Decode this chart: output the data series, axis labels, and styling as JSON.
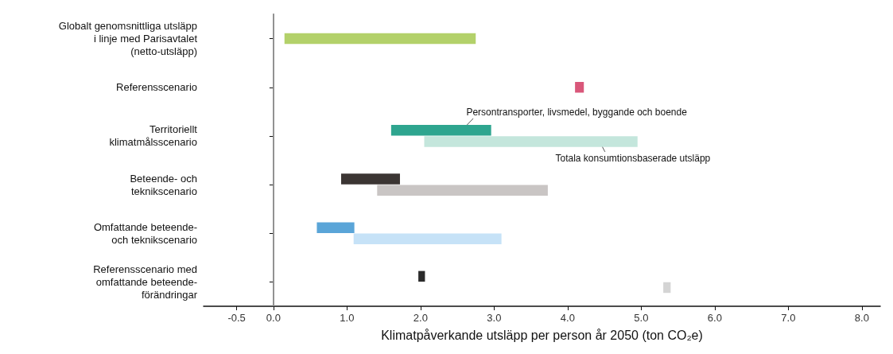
{
  "chart_data": {
    "type": "bar",
    "orientation": "horizontal",
    "xlabel": "Klimatpåverkande utsläpp per person år 2050 (ton CO₂e)",
    "categories": [
      "Globalt genomsnittliga utsläpp\ni linje med Parisavtalet\n(netto-utsläpp)",
      "Referensscenario",
      "Territoriellt\nklimatmålsscenario",
      "Beteende- och\nteknikscenario",
      "Omfattande beteende-\noch teknikscenario",
      "Referensscenario med\nomfattande beteende-\nförändringar"
    ],
    "series": [
      {
        "base": [
          0.15,
          4.1,
          1.6,
          0.92,
          0.59,
          1.97
        ],
        "values": [
          2.6,
          0.12,
          1.36,
          0.8,
          0.51,
          0.09
        ],
        "colors": [
          "#b3d16a",
          "#d9577a",
          "#2ea58f",
          "#3b3533",
          "#5aa5d8",
          "#2b2b2b"
        ]
      },
      {
        "base": [
          null,
          null,
          2.05,
          1.41,
          1.09,
          5.3
        ],
        "values": [
          null,
          null,
          2.9,
          2.32,
          2.01,
          0.1
        ],
        "colors": [
          null,
          null,
          "#c4e6dc",
          "#c9c5c4",
          "#c6e2f7",
          "#d4d4d4"
        ]
      }
    ],
    "annotations": [
      {
        "text": "Persontransporter, livsmedel, byggande och boende",
        "x": 2.5,
        "y": "Territoriellt\nklimatmålsscenario"
      },
      {
        "text": "Totala konsumtionsbaserade utsläpp",
        "x": 4.4,
        "y": "Territoriellt\nklimatmålsscenario"
      }
    ],
    "ref_lines": [
      {
        "axis": "x",
        "value": 0,
        "color": "#aaaaaa"
      }
    ],
    "xlim": [
      -0.95,
      8.25
    ],
    "xticks": [
      -0.5,
      {
        "value": 0,
        "label": "0.0"
      },
      {
        "value": 1,
        "label": "1.0"
      },
      {
        "value": 2,
        "label": "2.0"
      },
      {
        "value": 3,
        "label": "3.0"
      },
      {
        "value": 4,
        "label": "4.0"
      },
      {
        "value": 5,
        "label": "5.0"
      },
      {
        "value": 6,
        "label": "6.0"
      },
      {
        "value": 7,
        "label": "7.0"
      },
      {
        "value": 8,
        "label": "8.0"
      }
    ]
  }
}
